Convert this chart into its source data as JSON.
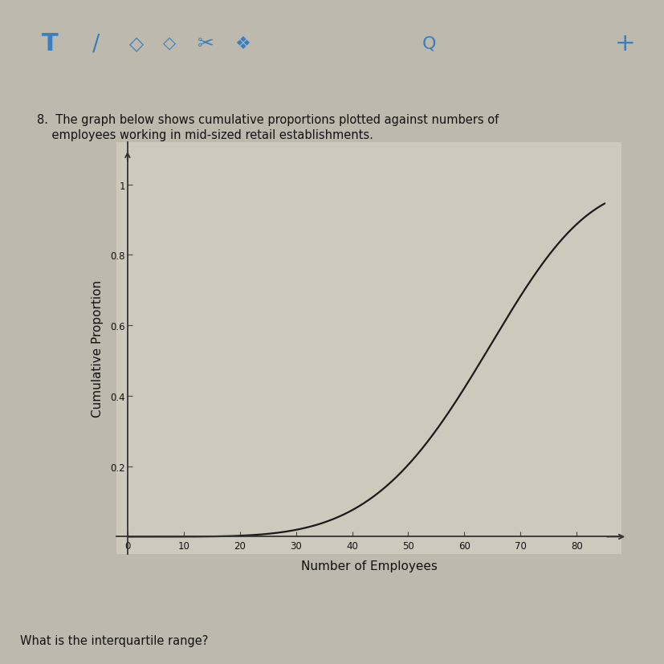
{
  "question_number": "8.",
  "question_text": "8.  The graph below shows cumulative proportions plotted against numbers of\n    employees working in mid-sized retail establishments.",
  "bottom_question": "What is the interquartile range?",
  "xlabel": "Number of Employees",
  "ylabel": "Cumulative Proportion",
  "x_ticks": [
    0,
    10,
    20,
    30,
    40,
    50,
    60,
    70,
    80
  ],
  "y_ticks": [
    0.2,
    0.4,
    0.6,
    0.8,
    1.0
  ],
  "y_tick_labels": [
    "0.2",
    "0.4",
    "0.6",
    "0.8",
    "1"
  ],
  "xlim": [
    -2,
    88
  ],
  "ylim": [
    -0.05,
    1.12
  ],
  "curve_color": "#1a1a1a",
  "bg_color": "#cdc9bc",
  "toolbar_bg": "#111122",
  "fig_bg": "#bdb9ac",
  "plot_bg": "#cdc9bc"
}
